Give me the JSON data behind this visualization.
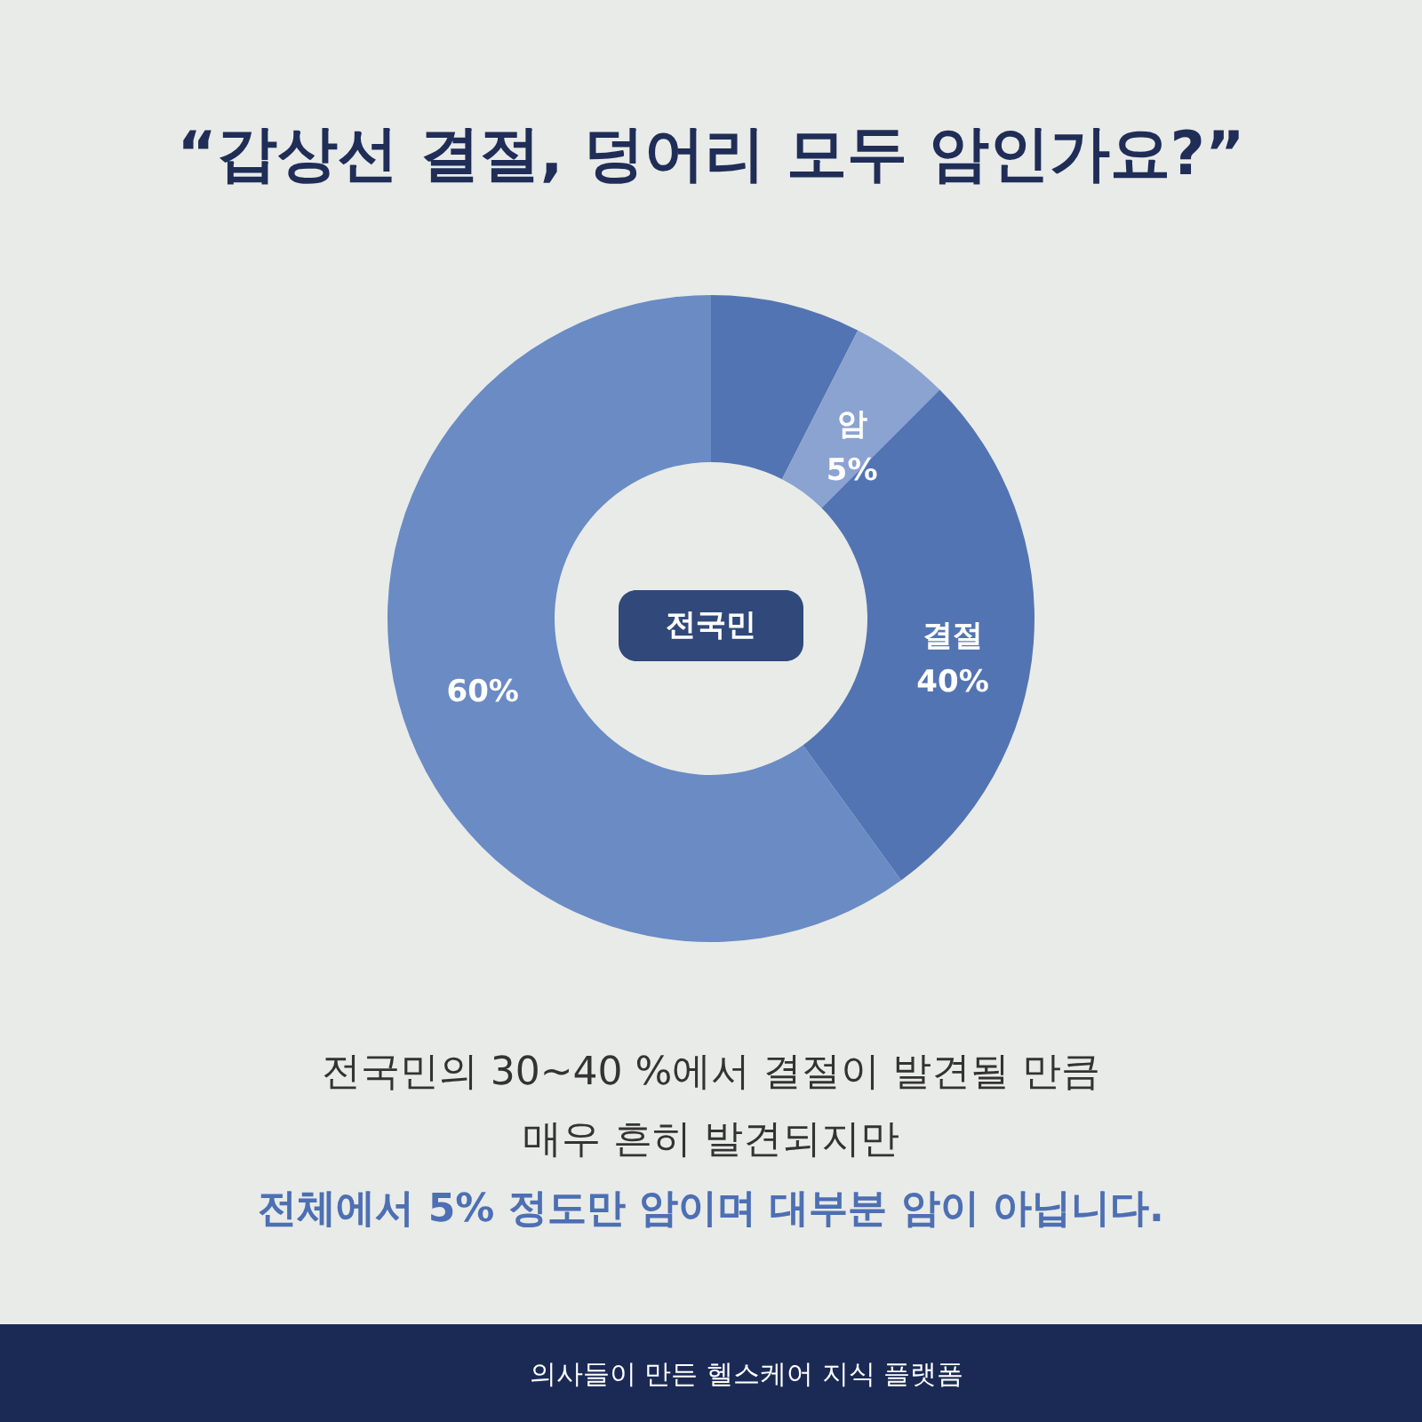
{
  "chart_data": {
    "type": "donut",
    "title": "“갑상선 결절, 덩어리 모두 암인가요?”",
    "categories": [
      null,
      "암",
      null,
      null
    ],
    "values": [
      7.5,
      5,
      27.5,
      60
    ],
    "value_labels": [
      null,
      "5%",
      null,
      "60%"
    ],
    "colors": [
      "#5374b2",
      "#8ba3d1",
      "#5374b2",
      "#6a8bc4"
    ],
    "annotations": [
      "전국민",
      "전국민의 30~40 %에서 결절이 발견될 만큼",
      "매우 흔히 발견되지만",
      "전체에서 5% 정도만 암이며 대부분 암이 아닙니다.",
      "의사들이 만든 헬스케어 지식 플랫폼",
      "결절",
      "40%"
    ]
  }
}
